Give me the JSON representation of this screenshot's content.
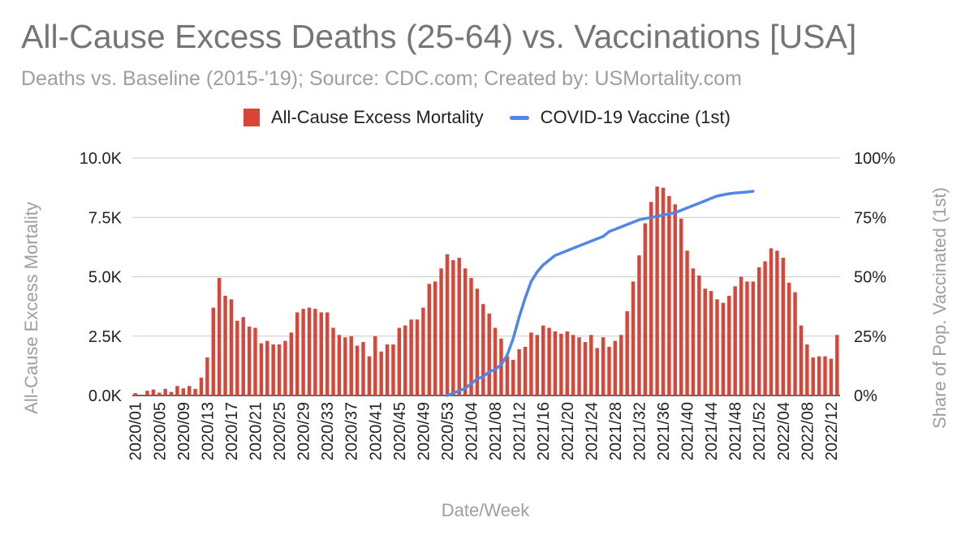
{
  "title": "All-Cause Excess Deaths (25-64) vs. Vaccinations [USA]",
  "subtitle": "Deaths vs. Baseline (2015-'19); Source: CDC.com; Created by: USMortality.com",
  "legend": {
    "bar": "All-Cause Excess Mortality",
    "line": "COVID-19 Vaccine (1st)",
    "bar_color": "#db4437",
    "line_color": "#4f86e8"
  },
  "chart_data": {
    "type": "bar+line",
    "title": "All-Cause Excess Deaths (25-64) vs. Vaccinations [USA]",
    "xlabel": "Date/Week",
    "ylabel_left": "All-Cause Excess Mortality",
    "ylabel_right": "Share of Pop. Vaccinated (1st)",
    "ylim_left": [
      0,
      10000
    ],
    "ylim_right": [
      0,
      100
    ],
    "yticks_left": [
      "0.0K",
      "2.5K",
      "5.0K",
      "7.5K",
      "10.0K"
    ],
    "yticks_right": [
      "0%",
      "25%",
      "50%",
      "75%",
      "100%"
    ],
    "grid": true,
    "legend_position": "top",
    "x_tick_labels": [
      "2020/01",
      "2020/05",
      "2020/09",
      "2020/13",
      "2020/17",
      "2020/21",
      "2020/25",
      "2020/29",
      "2020/33",
      "2020/37",
      "2020/41",
      "2020/45",
      "2020/49",
      "2020/53",
      "2021/04",
      "2021/08",
      "2021/12",
      "2021/16",
      "2021/20",
      "2021/24",
      "2021/28",
      "2021/32",
      "2021/36",
      "2021/40",
      "2021/44",
      "2021/48",
      "2021/52",
      "2022/04",
      "2022/08",
      "2022/12"
    ],
    "bar_series": {
      "name": "All-Cause Excess Mortality",
      "start_week": "2020/01",
      "values": [
        100,
        0,
        200,
        250,
        120,
        280,
        150,
        400,
        300,
        400,
        280,
        750,
        1600,
        3700,
        4950,
        4200,
        4050,
        3150,
        3300,
        2900,
        2850,
        2200,
        2300,
        2150,
        2150,
        2300,
        2650,
        3500,
        3650,
        3700,
        3650,
        3500,
        3500,
        2850,
        2550,
        2450,
        2500,
        2100,
        2250,
        1650,
        2500,
        1850,
        2150,
        2150,
        2850,
        2950,
        3200,
        3200,
        3700,
        4700,
        4800,
        5350,
        5950,
        5700,
        5800,
        5350,
        4950,
        4500,
        3850,
        3450,
        2850,
        2400,
        1650,
        1500,
        1950,
        2050,
        2650,
        2550,
        2950,
        2850,
        2700,
        2600,
        2700,
        2550,
        2450,
        2250,
        2550,
        2000,
        2450,
        2050,
        2300,
        2550,
        3550,
        4800,
        5900,
        7250,
        8150,
        8800,
        8750,
        8400,
        8050,
        7450,
        6100,
        5350,
        5050,
        4500,
        4400,
        4050,
        3900,
        4200,
        4600,
        5000,
        4800,
        4800,
        5400,
        5650,
        6200,
        6100,
        5800,
        4750,
        4350,
        2950,
        2150,
        1600,
        1650,
        1650,
        1550,
        2550
      ]
    },
    "line_series": {
      "name": "COVID-19 Vaccine (1st)",
      "start_week": "2020/51",
      "values": [
        0,
        1,
        2,
        3,
        5,
        7,
        8,
        10,
        11,
        13,
        17,
        24,
        33,
        41,
        48,
        52,
        55,
        57,
        59,
        60,
        61,
        62,
        63,
        64,
        65,
        66,
        67,
        69,
        70,
        71,
        72,
        73,
        74,
        74.5,
        75,
        75.5,
        76,
        76.5,
        77,
        78,
        79,
        80,
        81,
        82,
        83,
        84,
        84.5,
        85,
        85.3,
        85.5,
        85.7,
        86
      ]
    }
  }
}
